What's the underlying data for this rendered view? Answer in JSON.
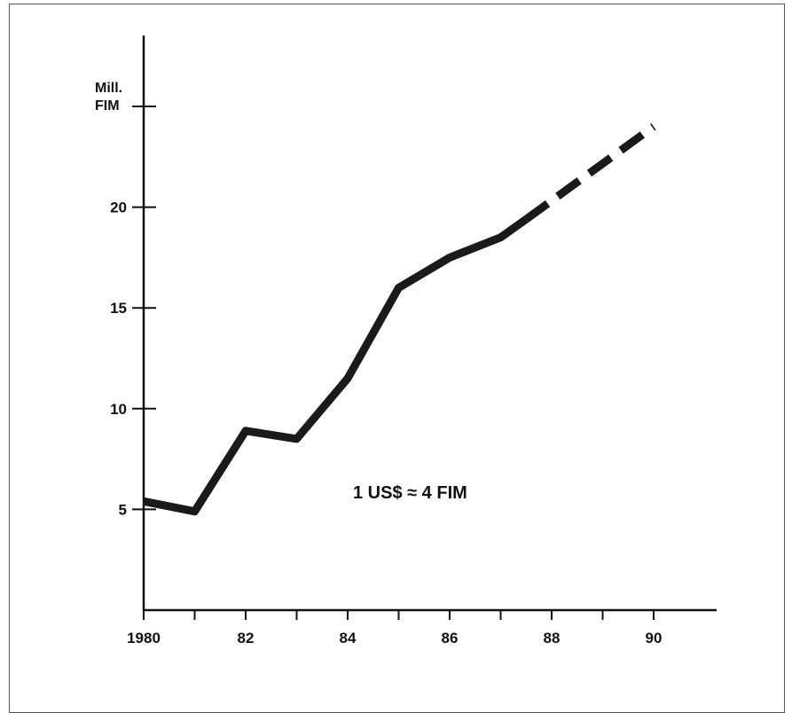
{
  "chart_data": {
    "type": "line",
    "unit_label_line1": "Mill.",
    "unit_label_line2": "FIM",
    "annotation": "1 US$ ≈ 4 FIM",
    "xlim": [
      1980,
      1991.3
    ],
    "ylim": [
      0,
      25
    ],
    "x_ticks": [
      1980,
      1981,
      1982,
      1983,
      1984,
      1985,
      1986,
      1987,
      1988,
      1989,
      1990
    ],
    "x_tick_labels": [
      "1980",
      "82",
      "84",
      "86",
      "88",
      "90"
    ],
    "x_tick_label_values": [
      1980,
      1982,
      1984,
      1986,
      1988,
      1990
    ],
    "y_ticks": [
      5,
      10,
      15,
      20,
      25
    ],
    "y_tick_labels": [
      "5",
      "10",
      "15",
      "20"
    ],
    "y_tick_label_values": [
      5,
      10,
      15,
      20
    ],
    "grid": false,
    "series": [
      {
        "style": "solid",
        "x": [
          1980,
          1981,
          1982,
          1983,
          1984,
          1985,
          1986,
          1987,
          1987.5
        ],
        "y": [
          5.4,
          4.9,
          8.9,
          8.5,
          11.5,
          16.0,
          17.5,
          18.5,
          19.4
        ]
      },
      {
        "style": "dashed",
        "x": [
          1987.5,
          1990
        ],
        "y": [
          19.4,
          24.0
        ]
      }
    ]
  }
}
